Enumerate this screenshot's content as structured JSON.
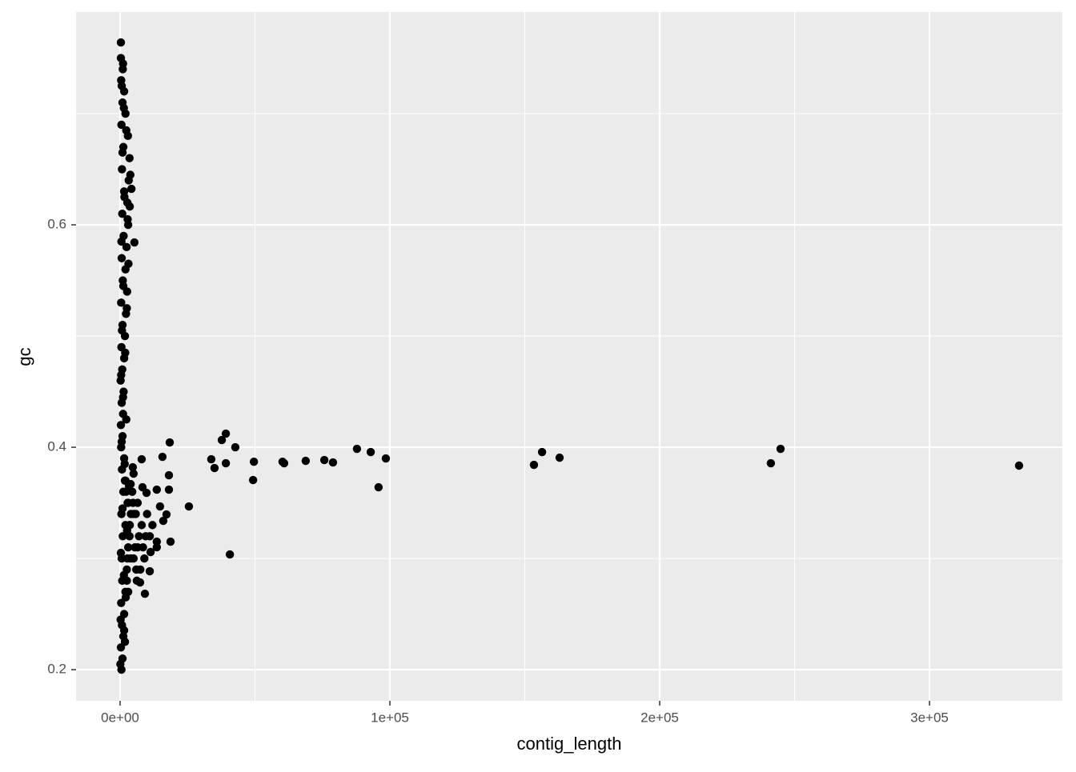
{
  "chart_data": {
    "type": "scatter",
    "x_label": "contig_length",
    "y_label": "gc",
    "color": "#000000",
    "grid": true,
    "xlim": [
      -16320,
      349260
    ],
    "ylim": [
      0.172,
      0.7914
    ],
    "xticks": [
      {
        "value": 0,
        "label": "0e+00"
      },
      {
        "value": 100000,
        "label": "1e+05"
      },
      {
        "value": 200000,
        "label": "2e+05"
      },
      {
        "value": 300000,
        "label": "3e+05"
      }
    ],
    "yticks": [
      0.2,
      0.4,
      0.6
    ],
    "x_minor_ticks": [
      50000,
      150000,
      250000
    ],
    "y_minor_ticks": [
      0.3,
      0.5,
      0.7
    ],
    "x": [
      333200,
      244800,
      241200,
      162900,
      156400,
      153400,
      98500,
      95800,
      92900,
      87800,
      78900,
      75700,
      68800,
      60800,
      60200,
      49600,
      49300,
      42700,
      40700,
      39200,
      39200,
      37700,
      35000,
      33800,
      25500,
      18400,
      18100,
      18700,
      18100,
      17200,
      15700,
      16000,
      14800,
      13600,
      13600,
      13600,
      11300,
      11000,
      9200,
      8000,
      8300,
      9800,
      7400,
      4700,
      5000,
      3900,
      5300,
      3600,
      4200,
      1500,
      300,
      500,
      900,
      300,
      1200,
      700,
      1500,
      400,
      2000,
      800,
      2500,
      600,
      3000,
      1000,
      3500,
      500,
      2800,
      1200,
      2000,
      700,
      1500,
      400,
      900,
      300,
      1100,
      600,
      1300,
      200,
      800,
      1500,
      500,
      1800,
      900,
      2200,
      400,
      2600,
      1000,
      2000,
      600,
      2400,
      1300,
      3000,
      800,
      2700,
      1500,
      3200,
      700,
      3500,
      1200,
      2900,
      500,
      2000,
      900,
      1500,
      400,
      1000,
      300,
      100,
      1800,
      200,
      2100,
      1400,
      300,
      2600,
      900,
      3300,
      1700,
      600,
      2300,
      1100,
      400,
      1900,
      700,
      2500,
      1200,
      3100,
      500,
      2800,
      1600,
      3800,
      900,
      2300,
      1400,
      600,
      1100,
      2000,
      3500,
      5000,
      6500,
      8000,
      4000,
      3000,
      6000,
      7000,
      10000,
      12000,
      2500,
      4500,
      5500,
      9000,
      3000,
      6500,
      11000,
      4000,
      7500,
      2200,
      5000,
      8500,
      3600,
      1800,
      6200,
      4800,
      9500,
      2700,
      5800
    ],
    "y": [
      0.3835,
      0.3986,
      0.3856,
      0.3906,
      0.3957,
      0.3842,
      0.3899,
      0.364,
      0.3957,
      0.3986,
      0.3863,
      0.3885,
      0.3878,
      0.3856,
      0.387,
      0.387,
      0.3705,
      0.4,
      0.3036,
      0.4122,
      0.3856,
      0.4065,
      0.3813,
      0.3892,
      0.3468,
      0.4043,
      0.3748,
      0.3151,
      0.3619,
      0.3396,
      0.3914,
      0.3338,
      0.3468,
      0.3619,
      0.3151,
      0.3101,
      0.3058,
      0.2885,
      0.2683,
      0.3892,
      0.364,
      0.359,
      0.2784,
      0.382,
      0.3763,
      0.3669,
      0.5842,
      0.6165,
      0.6324,
      0.2353,
      0.764,
      0.2,
      0.21,
      0.22,
      0.23,
      0.24,
      0.25,
      0.26,
      0.27,
      0.28,
      0.29,
      0.3,
      0.31,
      0.32,
      0.33,
      0.34,
      0.35,
      0.36,
      0.37,
      0.38,
      0.39,
      0.4,
      0.41,
      0.42,
      0.43,
      0.44,
      0.45,
      0.46,
      0.47,
      0.48,
      0.49,
      0.5,
      0.51,
      0.52,
      0.53,
      0.54,
      0.55,
      0.56,
      0.57,
      0.58,
      0.59,
      0.6,
      0.61,
      0.62,
      0.63,
      0.64,
      0.65,
      0.66,
      0.67,
      0.68,
      0.69,
      0.7,
      0.71,
      0.72,
      0.73,
      0.74,
      0.75,
      0.205,
      0.225,
      0.245,
      0.265,
      0.285,
      0.305,
      0.325,
      0.345,
      0.365,
      0.385,
      0.405,
      0.425,
      0.445,
      0.465,
      0.485,
      0.505,
      0.525,
      0.545,
      0.565,
      0.585,
      0.605,
      0.625,
      0.645,
      0.665,
      0.685,
      0.705,
      0.725,
      0.745,
      0.33,
      0.32,
      0.34,
      0.31,
      0.33,
      0.3,
      0.35,
      0.29,
      0.32,
      0.34,
      0.33,
      0.28,
      0.36,
      0.31,
      0.3,
      0.27,
      0.35,
      0.32,
      0.34,
      0.29,
      0.36,
      0.3,
      0.31,
      0.33,
      0.37,
      0.28,
      0.35,
      0.32,
      0.3,
      0.34
    ]
  }
}
